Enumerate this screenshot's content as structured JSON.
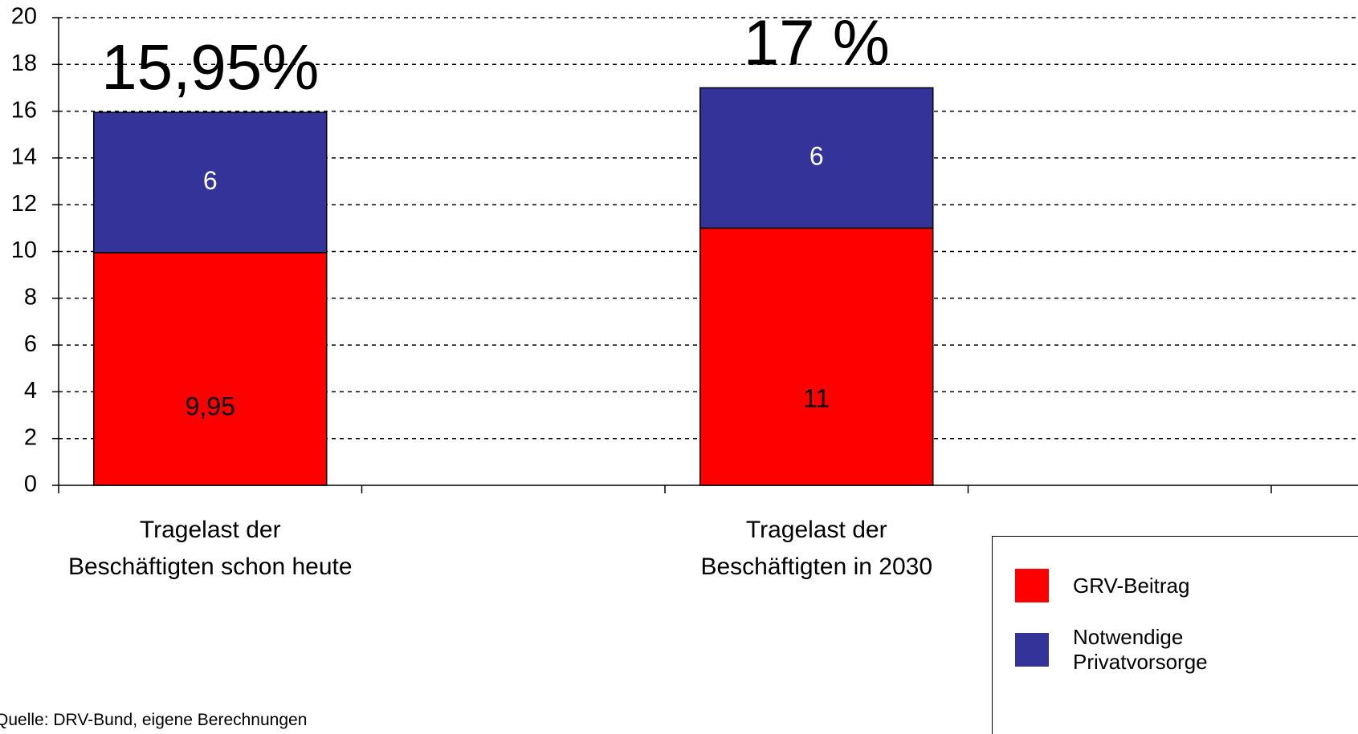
{
  "chart_data": {
    "type": "stacked-bar",
    "categories": [
      "Tragelast der\nBeschäftigten schon heute",
      null,
      "Tragelast der\nBeschäftigten in 2030",
      null
    ],
    "series": [
      {
        "name": "GRV-Beitrag",
        "color": "#ff0000",
        "values": [
          9.95,
          null,
          11,
          null
        ],
        "value_labels": [
          "9,95",
          null,
          "11",
          null
        ]
      },
      {
        "name": "Notwendige\nPrivatvorsorge",
        "color": "#333399",
        "values": [
          6,
          null,
          6,
          null
        ]
      }
    ],
    "totals": [
      15.95,
      null,
      17,
      null
    ],
    "total_labels": [
      "15,95%",
      null,
      "17 %",
      null
    ],
    "ylim": [
      0,
      20
    ],
    "yticks": [
      0,
      2,
      4,
      6,
      8,
      10,
      12,
      14,
      16,
      18,
      20
    ],
    "grid": true,
    "legend": "bottom-right",
    "source": "Quelle: DRV-Bund, eigene Berechnungen"
  }
}
